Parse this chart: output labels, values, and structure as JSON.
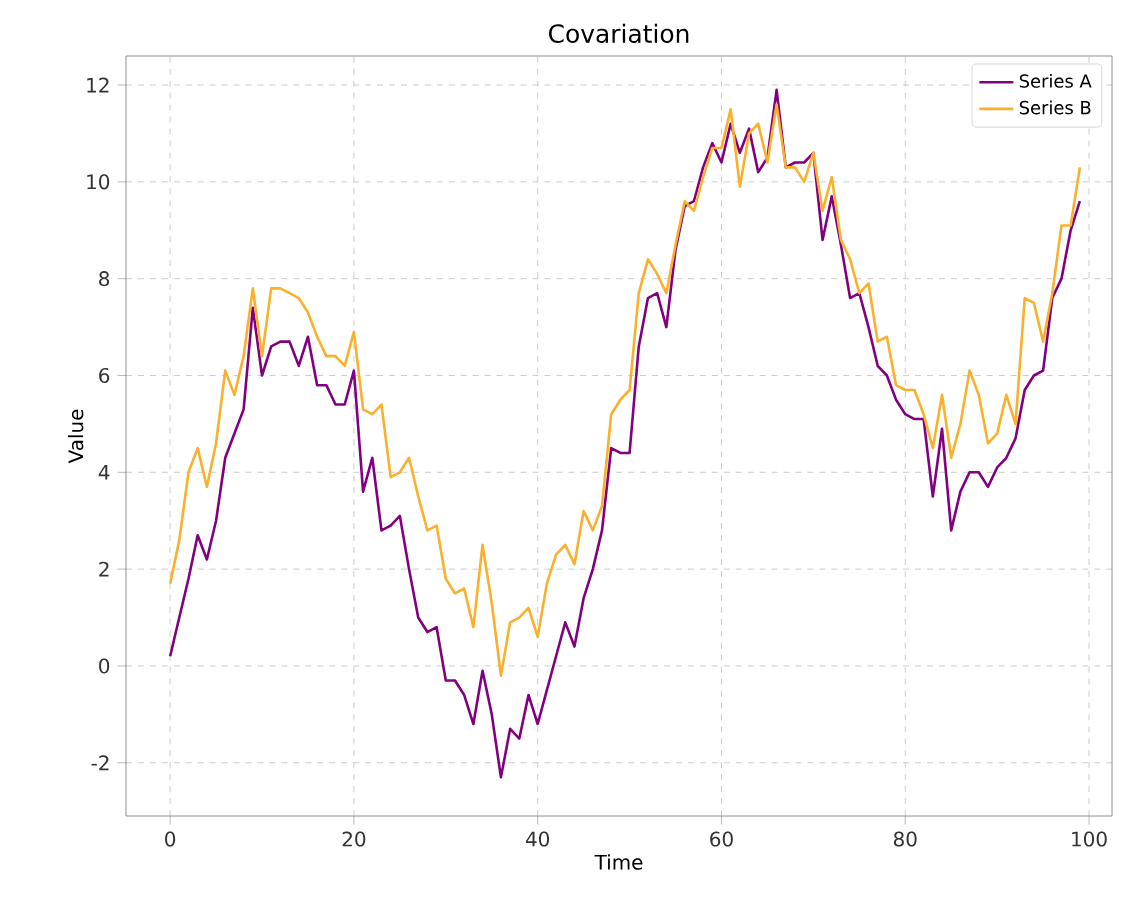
{
  "chart_data": {
    "type": "line",
    "title": "Covariation",
    "xlabel": "Time",
    "ylabel": "Value",
    "x": [
      0,
      1,
      2,
      3,
      4,
      5,
      6,
      7,
      8,
      9,
      10,
      11,
      12,
      13,
      14,
      15,
      16,
      17,
      18,
      19,
      20,
      21,
      22,
      23,
      24,
      25,
      26,
      27,
      28,
      29,
      30,
      31,
      32,
      33,
      34,
      35,
      36,
      37,
      38,
      39,
      40,
      41,
      42,
      43,
      44,
      45,
      46,
      47,
      48,
      49,
      50,
      51,
      52,
      53,
      54,
      55,
      56,
      57,
      58,
      59,
      60,
      61,
      62,
      63,
      64,
      65,
      66,
      67,
      68,
      69,
      70,
      71,
      72,
      73,
      74,
      75,
      76,
      77,
      78,
      79,
      80,
      81,
      82,
      83,
      84,
      85,
      86,
      87,
      88,
      89,
      90,
      91,
      92,
      93,
      94,
      95,
      96,
      97,
      98,
      99
    ],
    "series": [
      {
        "name": "Series A",
        "color": "#800080",
        "values": [
          0.2,
          1.0,
          1.8,
          2.7,
          2.2,
          3.0,
          4.3,
          4.8,
          5.3,
          7.4,
          6.0,
          6.6,
          6.7,
          6.7,
          6.2,
          6.8,
          5.8,
          5.8,
          5.4,
          5.4,
          6.1,
          3.6,
          4.3,
          2.8,
          2.9,
          3.1,
          2.0,
          1.0,
          0.7,
          0.8,
          -0.3,
          -0.3,
          -0.6,
          -1.2,
          -0.1,
          -1.0,
          -2.3,
          -1.3,
          -1.5,
          -0.6,
          -1.2,
          -0.5,
          0.2,
          0.9,
          0.4,
          1.4,
          2.0,
          2.8,
          4.5,
          4.4,
          4.4,
          6.6,
          7.6,
          7.7,
          7.0,
          8.6,
          9.5,
          9.6,
          10.3,
          10.8,
          10.4,
          11.2,
          10.6,
          11.1,
          10.2,
          10.5,
          11.9,
          10.3,
          10.4,
          10.4,
          10.6,
          8.8,
          9.7,
          8.7,
          7.6,
          7.7,
          7.0,
          6.2,
          6.0,
          5.5,
          5.2,
          5.1,
          5.1,
          3.5,
          4.9,
          2.8,
          3.6,
          4.0,
          4.0,
          3.7,
          4.1,
          4.3,
          4.7,
          5.7,
          6.0,
          6.1,
          7.6,
          8.0,
          9.0,
          9.6
        ]
      },
      {
        "name": "Series B",
        "color": "#fbb02d",
        "values": [
          1.7,
          2.6,
          4.0,
          4.5,
          3.7,
          4.6,
          6.1,
          5.6,
          6.4,
          7.8,
          6.4,
          7.8,
          7.8,
          7.7,
          7.6,
          7.3,
          6.8,
          6.4,
          6.4,
          6.2,
          6.9,
          5.3,
          5.2,
          5.4,
          3.9,
          4.0,
          4.3,
          3.5,
          2.8,
          2.9,
          1.8,
          1.5,
          1.6,
          0.8,
          2.5,
          1.3,
          -0.2,
          0.9,
          1.0,
          1.2,
          0.6,
          1.7,
          2.3,
          2.5,
          2.1,
          3.2,
          2.8,
          3.3,
          5.2,
          5.5,
          5.7,
          7.7,
          8.4,
          8.1,
          7.7,
          8.7,
          9.6,
          9.4,
          10.1,
          10.7,
          10.7,
          11.5,
          9.9,
          11.0,
          11.2,
          10.4,
          11.6,
          10.3,
          10.3,
          10.0,
          10.6,
          9.4,
          10.1,
          8.8,
          8.4,
          7.7,
          7.9,
          6.7,
          6.8,
          5.8,
          5.7,
          5.7,
          5.2,
          4.5,
          5.6,
          4.3,
          5.0,
          6.1,
          5.6,
          4.6,
          4.8,
          5.6,
          5.0,
          7.6,
          7.5,
          6.7,
          7.7,
          9.1,
          9.1,
          10.3
        ]
      }
    ],
    "xlim": [
      -4.8,
      102.5
    ],
    "ylim": [
      -3.1,
      12.6
    ],
    "xticks": [
      0,
      20,
      40,
      60,
      80,
      100
    ],
    "yticks": [
      -2,
      0,
      2,
      4,
      6,
      8,
      10,
      12
    ],
    "grid": true,
    "legend": "top right",
    "line_style": "solid",
    "marker": "none"
  }
}
